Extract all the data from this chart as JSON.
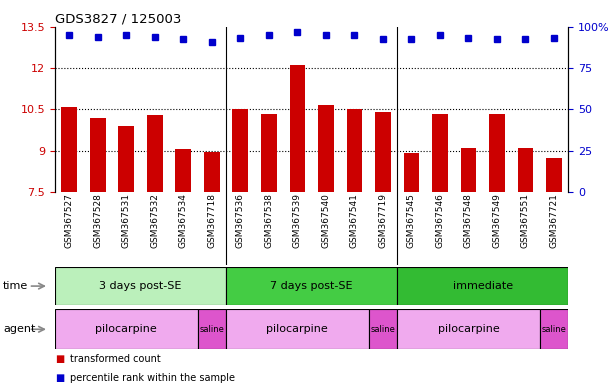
{
  "title": "GDS3827 / 125003",
  "samples": [
    "GSM367527",
    "GSM367528",
    "GSM367531",
    "GSM367532",
    "GSM367534",
    "GSM367718",
    "GSM367536",
    "GSM367538",
    "GSM367539",
    "GSM367540",
    "GSM367541",
    "GSM367719",
    "GSM367545",
    "GSM367546",
    "GSM367548",
    "GSM367549",
    "GSM367551",
    "GSM367721"
  ],
  "bar_values": [
    10.6,
    10.2,
    9.9,
    10.3,
    9.05,
    8.95,
    10.5,
    10.35,
    12.1,
    10.65,
    10.5,
    10.4,
    8.9,
    10.35,
    9.1,
    10.35,
    9.1,
    8.75
  ],
  "dot_values": [
    13.2,
    13.15,
    13.2,
    13.15,
    13.05,
    12.95,
    13.1,
    13.2,
    13.3,
    13.2,
    13.2,
    13.05,
    13.05,
    13.2,
    13.1,
    13.05,
    13.05,
    13.1
  ],
  "ylim_left": [
    7.5,
    13.5
  ],
  "ylim_right": [
    0,
    100
  ],
  "yticks_left": [
    7.5,
    9.0,
    10.5,
    12.0,
    13.5
  ],
  "ytick_labels_left": [
    "7.5",
    "9",
    "10.5",
    "12",
    "13.5"
  ],
  "yticks_right": [
    0,
    25,
    50,
    75,
    100
  ],
  "ytick_labels_right": [
    "0",
    "25",
    "50",
    "75",
    "100%"
  ],
  "hlines": [
    9.0,
    10.5,
    12.0
  ],
  "bar_color": "#cc0000",
  "dot_color": "#0000cc",
  "bar_bottom": 7.5,
  "time_groups": [
    {
      "label": "3 days post-SE",
      "start": 0,
      "end": 5,
      "color": "#bbf0bb"
    },
    {
      "label": "7 days post-SE",
      "start": 6,
      "end": 11,
      "color": "#44cc44"
    },
    {
      "label": "immediate",
      "start": 12,
      "end": 17,
      "color": "#33bb33"
    }
  ],
  "agent_groups": [
    {
      "label": "pilocarpine",
      "start": 0,
      "end": 4,
      "color": "#f0aaee"
    },
    {
      "label": "saline",
      "start": 5,
      "end": 5,
      "color": "#dd55cc"
    },
    {
      "label": "pilocarpine",
      "start": 6,
      "end": 10,
      "color": "#f0aaee"
    },
    {
      "label": "saline",
      "start": 11,
      "end": 11,
      "color": "#dd55cc"
    },
    {
      "label": "pilocarpine",
      "start": 12,
      "end": 16,
      "color": "#f0aaee"
    },
    {
      "label": "saline",
      "start": 17,
      "end": 17,
      "color": "#dd55cc"
    }
  ],
  "legend_items": [
    {
      "label": "transformed count",
      "color": "#cc0000"
    },
    {
      "label": "percentile rank within the sample",
      "color": "#0000cc"
    }
  ],
  "time_label": "time",
  "agent_label": "agent",
  "background_color": "#ffffff",
  "tick_label_color_left": "#cc0000",
  "tick_label_color_right": "#0000cc",
  "xtick_bg_color": "#d8d8d8",
  "group_boundaries": [
    5.5,
    11.5
  ]
}
